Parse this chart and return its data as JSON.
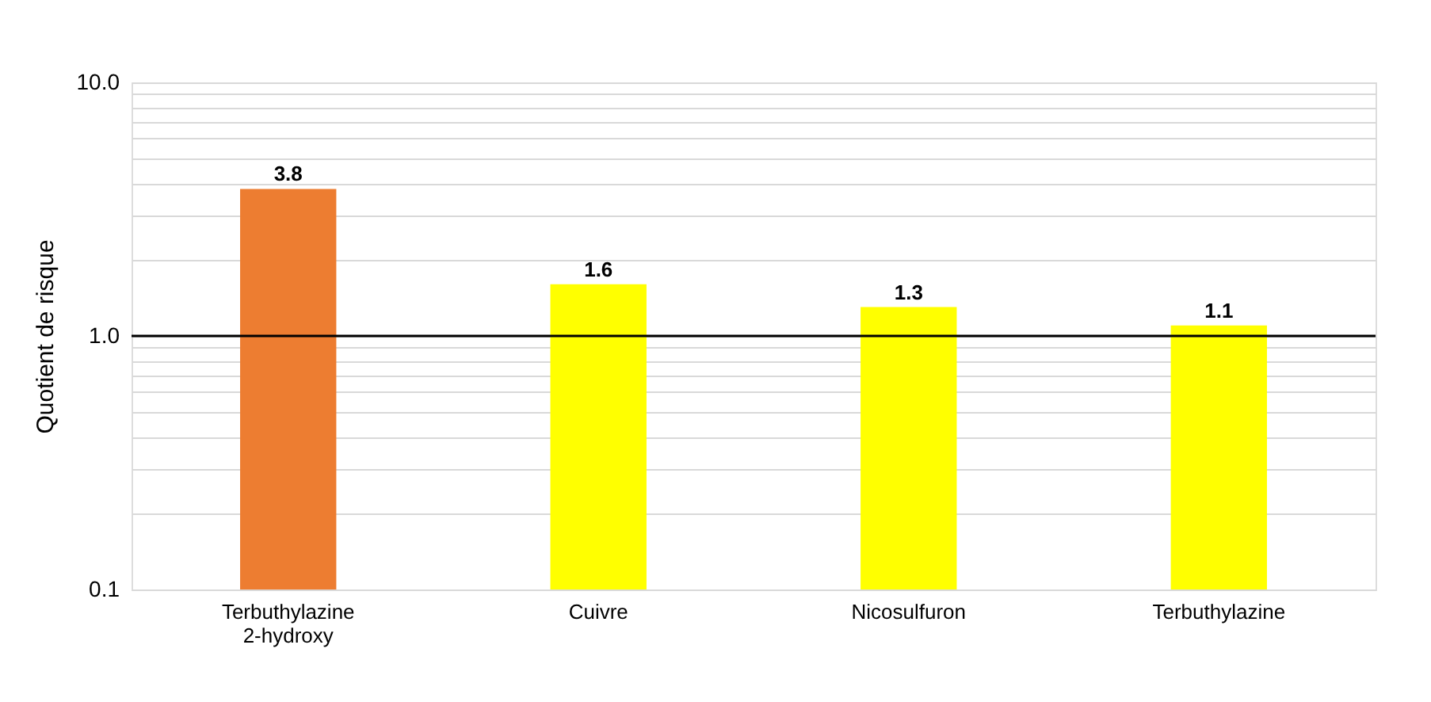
{
  "chart_data": {
    "type": "bar",
    "ylabel": "Quotient de risque",
    "categories": [
      "Terbuthylazine\n2-hydroxy",
      "Cuivre",
      "Nicosulfuron",
      "Terbuthylazine"
    ],
    "values": [
      3.8,
      1.6,
      1.3,
      1.1
    ],
    "colors": [
      "#ed7d31",
      "#ffff00",
      "#ffff00",
      "#ffff00"
    ],
    "log": true,
    "ylim": [
      0.1,
      10
    ],
    "yticks": [
      {
        "value": 0.1,
        "label": "0.1"
      },
      {
        "value": 0.2,
        "label": null
      },
      {
        "value": 0.3,
        "label": null
      },
      {
        "value": 0.4,
        "label": null
      },
      {
        "value": 0.5,
        "label": null
      },
      {
        "value": 0.6,
        "label": null
      },
      {
        "value": 0.7,
        "label": null
      },
      {
        "value": 0.8,
        "label": null
      },
      {
        "value": 0.9,
        "label": null
      },
      {
        "value": 1,
        "label": "1.0"
      },
      {
        "value": 2,
        "label": null
      },
      {
        "value": 3,
        "label": null
      },
      {
        "value": 4,
        "label": null
      },
      {
        "value": 5,
        "label": null
      },
      {
        "value": 6,
        "label": null
      },
      {
        "value": 7,
        "label": null
      },
      {
        "value": 8,
        "label": null
      },
      {
        "value": 9,
        "label": null
      },
      {
        "value": 10,
        "label": "10.0"
      }
    ],
    "grid": "y",
    "data_labels": true,
    "ref_lines": [
      {
        "axis": "y",
        "value": 1,
        "color": "#000000"
      }
    ]
  }
}
